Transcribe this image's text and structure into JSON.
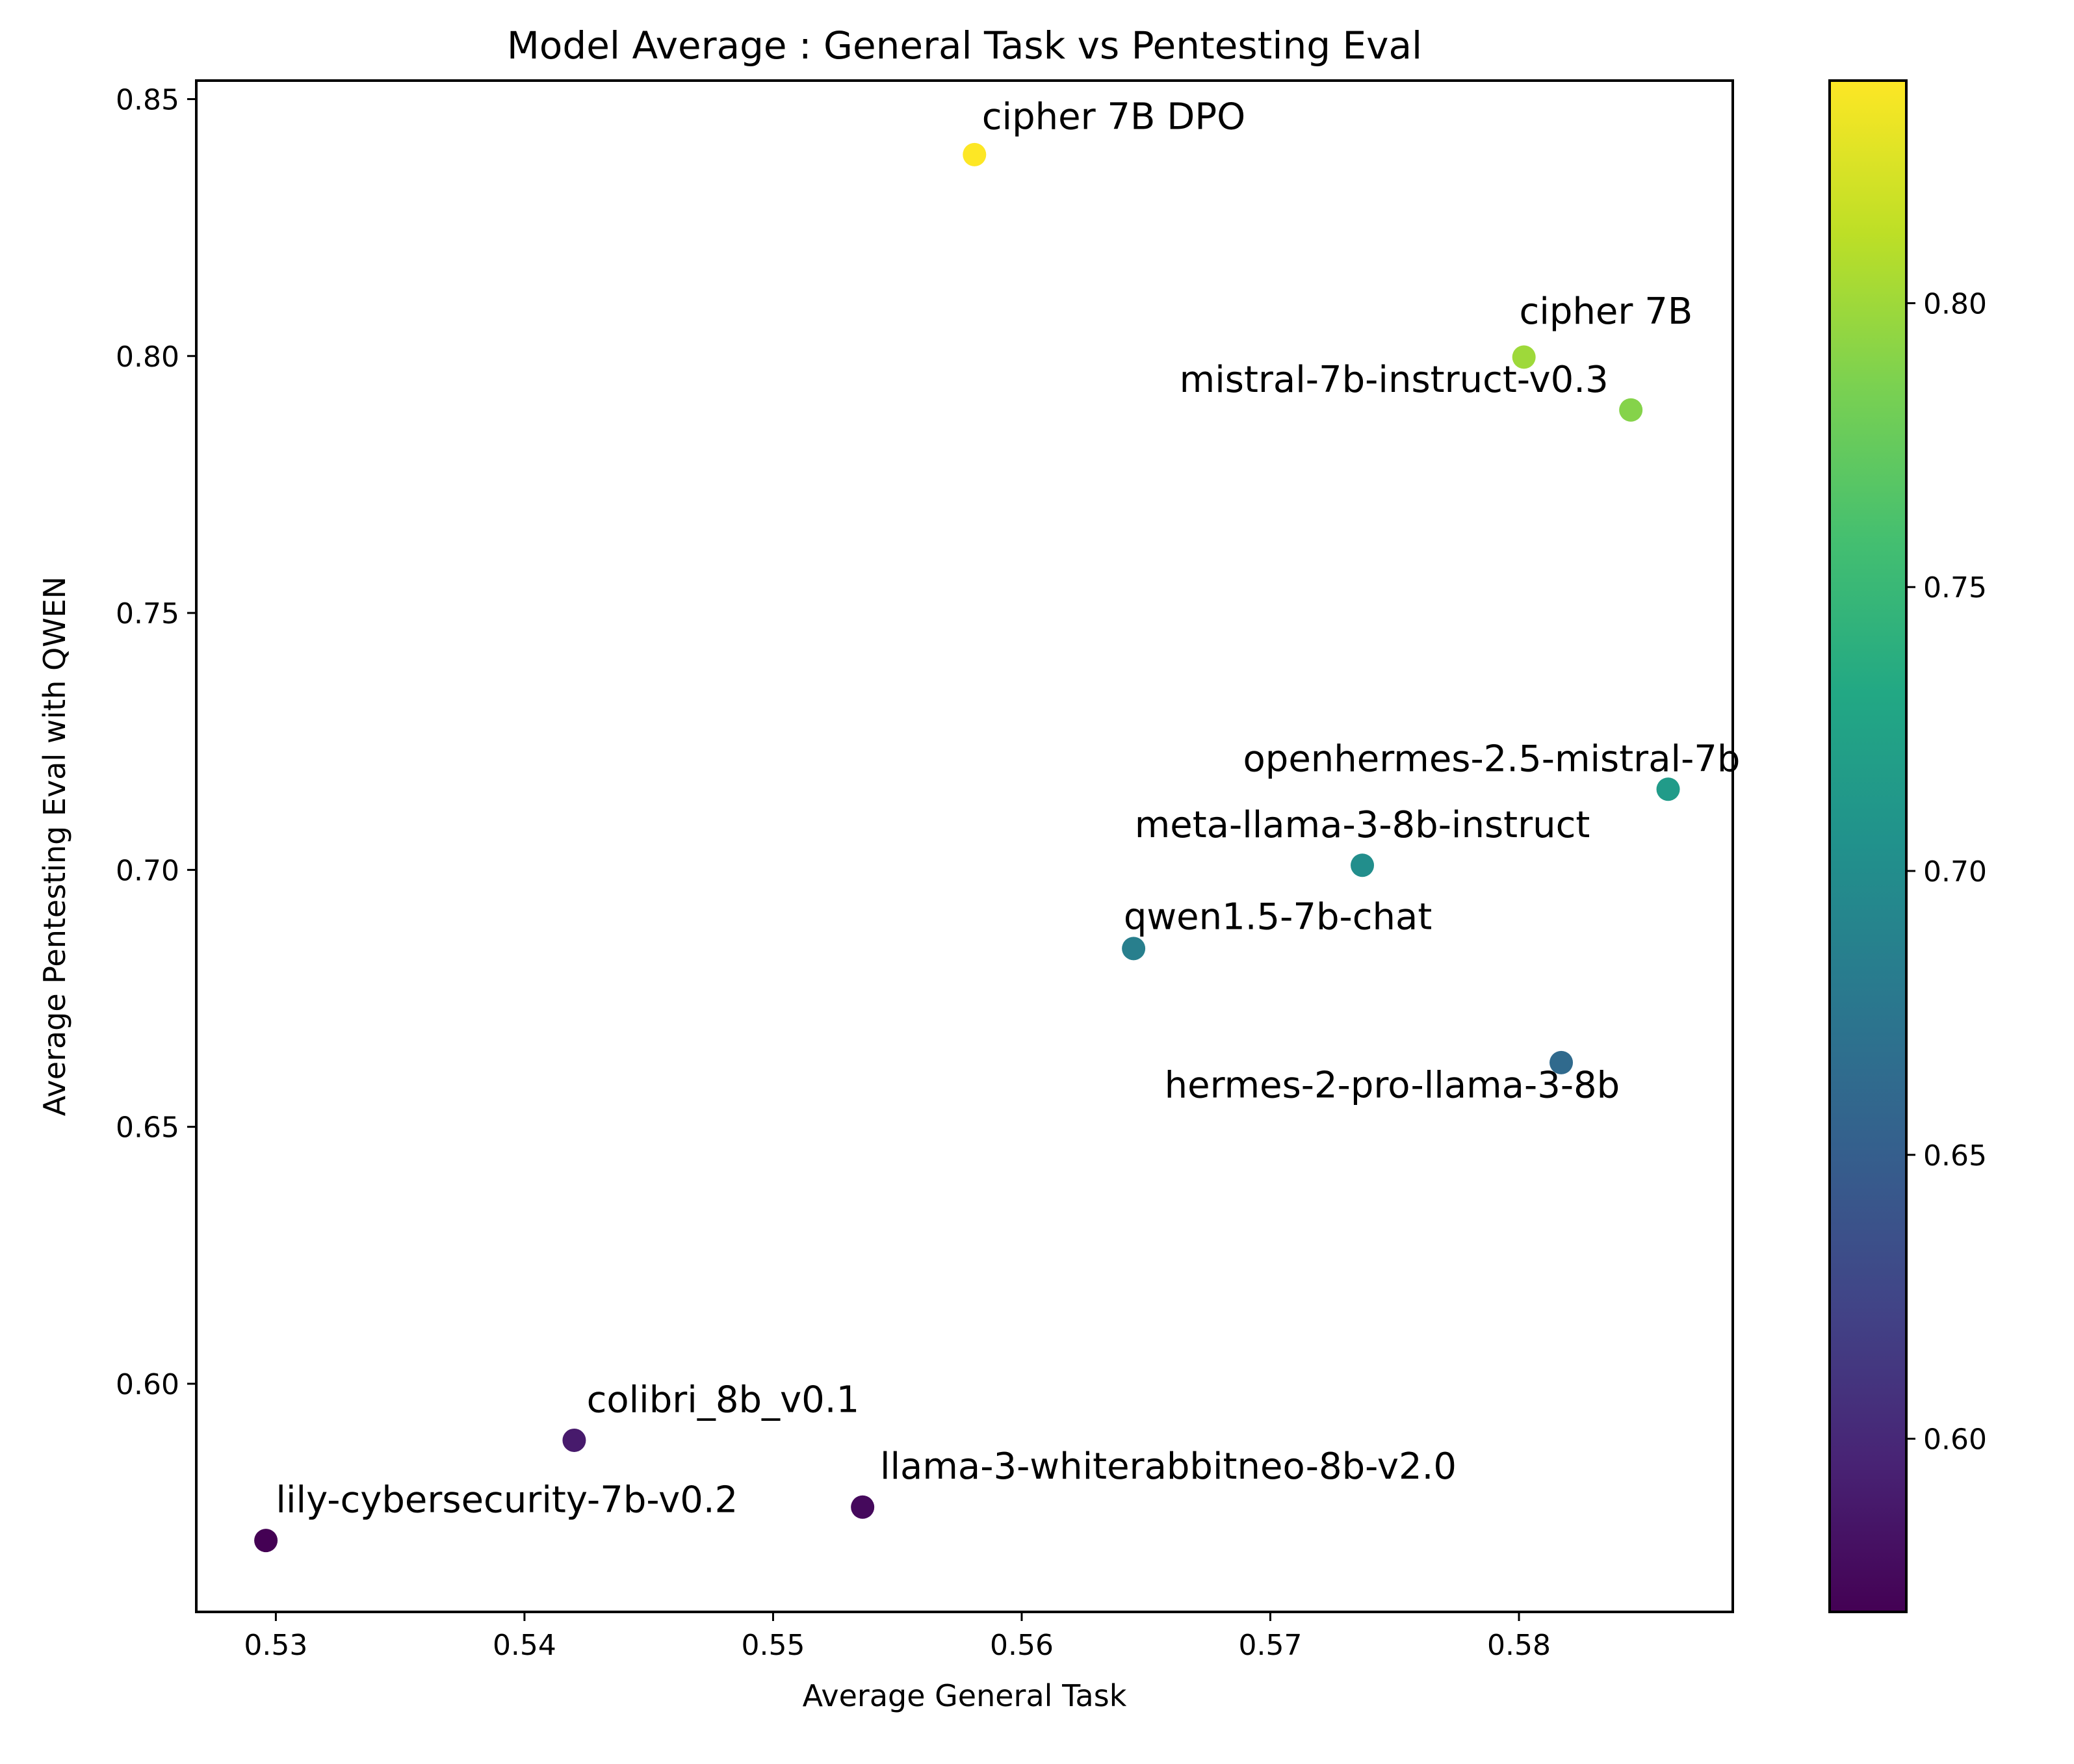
{
  "chart_data": {
    "type": "scatter",
    "title": "Model Average : General Task vs Pentesting Eval",
    "xlabel": "Average General Task",
    "ylabel": "Average Pentesting Eval with QWEN",
    "xlim": [
      0.5268,
      0.5886
    ],
    "ylim": [
      0.5556,
      0.8536
    ],
    "x_ticks": [
      0.53,
      0.54,
      0.55,
      0.56,
      0.57,
      0.58
    ],
    "x_tick_labels": [
      "0.53",
      "0.54",
      "0.55",
      "0.56",
      "0.57",
      "0.58"
    ],
    "y_ticks": [
      0.6,
      0.65,
      0.7,
      0.75,
      0.8,
      0.85
    ],
    "y_tick_labels": [
      "0.60",
      "0.65",
      "0.70",
      "0.75",
      "0.80",
      "0.85"
    ],
    "colorbar": {
      "colormap": "viridis",
      "range": [
        0.5695,
        0.8392
      ],
      "ticks": [
        0.6,
        0.65,
        0.7,
        0.75,
        0.8
      ],
      "tick_labels": [
        "0.60",
        "0.65",
        "0.70",
        "0.75",
        "0.80"
      ]
    },
    "points": [
      {
        "label": "cipher 7B DPO",
        "x": 0.5581,
        "y": 0.8392,
        "anchor": "start",
        "dx": 0.0003,
        "dy": 0.005
      },
      {
        "label": "cipher 7B",
        "x": 0.5802,
        "y": 0.7998,
        "anchor": "middle",
        "dx": 0.0033,
        "dy": 0.0065
      },
      {
        "label": "mistral-7b-instruct-v0.3",
        "x": 0.5845,
        "y": 0.7895,
        "anchor": "end",
        "dx": -0.0009,
        "dy": 0.0035
      },
      {
        "label": "openhermes-2.5-mistral-7b",
        "x": 0.586,
        "y": 0.7157,
        "anchor": "end",
        "dx": 0.0029,
        "dy": 0.0035
      },
      {
        "label": "meta-llama-3-8b-instruct",
        "x": 0.5737,
        "y": 0.7009,
        "anchor": "middle",
        "dx": 0.0,
        "dy": 0.0055
      },
      {
        "label": "qwen1.5-7b-chat",
        "x": 0.5645,
        "y": 0.6847,
        "anchor": "start",
        "dx": -0.0004,
        "dy": 0.0038
      },
      {
        "label": "hermes-2-pro-llama-3-8b",
        "x": 0.5817,
        "y": 0.6625,
        "anchor": "middle",
        "dx": -0.0068,
        "dy": -0.0068
      },
      {
        "label": "colibri_8b_v0.1",
        "x": 0.542,
        "y": 0.589,
        "anchor": "start",
        "dx": 0.0005,
        "dy": 0.0055
      },
      {
        "label": "llama-3-whiterabbitneo-8b-v2.0",
        "x": 0.5536,
        "y": 0.576,
        "anchor": "start",
        "dx": 0.0007,
        "dy": 0.0055
      },
      {
        "label": "lily-cybersecurity-7b-v0.2",
        "x": 0.5296,
        "y": 0.5695,
        "anchor": "start",
        "dx": 0.0004,
        "dy": 0.0055
      }
    ]
  }
}
